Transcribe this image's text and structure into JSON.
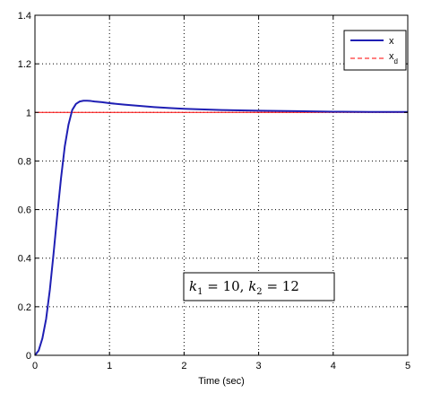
{
  "chart_data": {
    "type": "line",
    "title": "",
    "xlabel": "Time (sec)",
    "ylabel": "",
    "xlim": [
      0,
      5
    ],
    "ylim": [
      0,
      1.4
    ],
    "x_ticks": [
      0,
      1,
      2,
      3,
      4,
      5
    ],
    "y_ticks": [
      0,
      0.2,
      0.4,
      0.6,
      0.8,
      1,
      1.2,
      1.4
    ],
    "x_tick_labels": [
      "0",
      "1",
      "2",
      "3",
      "4",
      "5"
    ],
    "y_tick_labels": [
      "0",
      "0.2",
      "0.4",
      "0.6",
      "0.8",
      "1",
      "1.2",
      "1.4"
    ],
    "grid": true,
    "legend_position": "top-right",
    "series": [
      {
        "name": "x",
        "color": "#1f1fb4",
        "style": "solid",
        "x": [
          0,
          0.05,
          0.1,
          0.15,
          0.2,
          0.25,
          0.3,
          0.35,
          0.4,
          0.45,
          0.5,
          0.55,
          0.6,
          0.65,
          0.7,
          0.75,
          0.8,
          0.9,
          1.0,
          1.2,
          1.4,
          1.6,
          1.8,
          2.0,
          2.5,
          3.0,
          3.5,
          4.0,
          4.5,
          5.0
        ],
        "y": [
          0,
          0.02,
          0.07,
          0.15,
          0.27,
          0.42,
          0.58,
          0.73,
          0.86,
          0.95,
          1.01,
          1.035,
          1.045,
          1.048,
          1.048,
          1.047,
          1.045,
          1.042,
          1.038,
          1.032,
          1.027,
          1.022,
          1.018,
          1.015,
          1.01,
          1.007,
          1.005,
          1.003,
          1.002,
          1.002
        ]
      },
      {
        "name": "x_d",
        "color": "#ff0000",
        "style": "dashed",
        "x": [
          0,
          5
        ],
        "y": [
          1,
          1
        ]
      }
    ],
    "legend": {
      "entries": [
        {
          "main": "x",
          "sub": ""
        },
        {
          "main": "x",
          "sub": "d"
        }
      ]
    },
    "annotation": {
      "k1_var": "k",
      "k1_sub": "1",
      "k1_eq": " = 10, ",
      "k2_var": "k",
      "k2_sub": "2",
      "k2_eq": " = 12"
    }
  }
}
